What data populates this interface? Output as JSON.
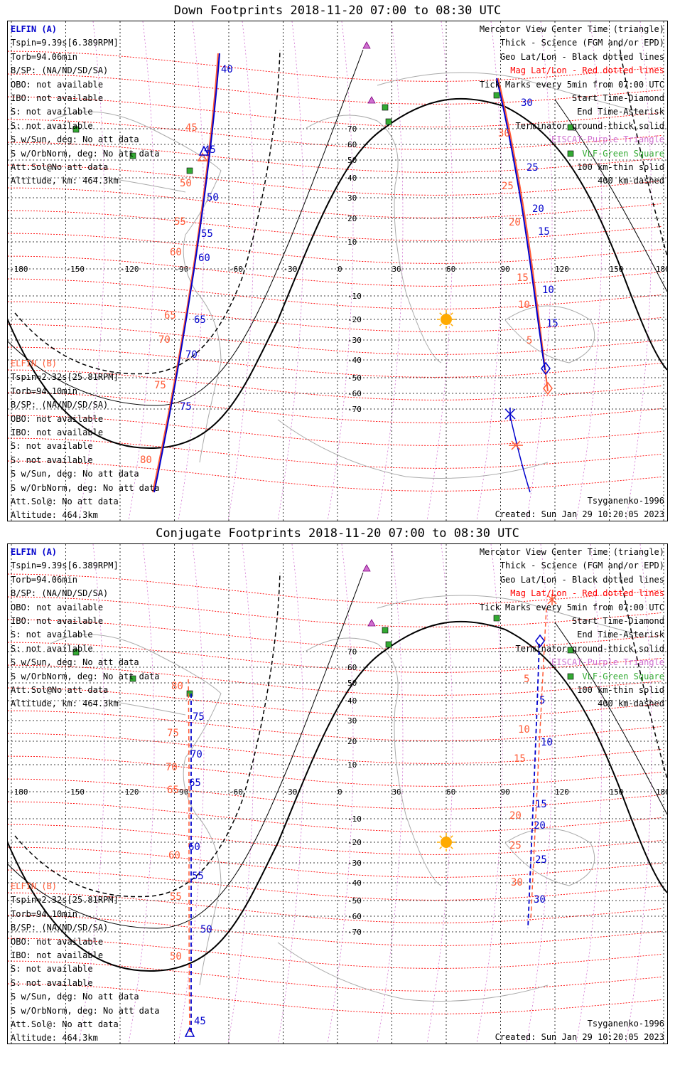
{
  "panels": [
    {
      "title": "Down Footprints 2018-11-20 07:00 to 08:30 UTC",
      "elfin_a": {
        "name": "ELFIN (A)",
        "lines": [
          "Tspin=9.39s[6.389RPM]",
          "Torb=94.06min",
          "B/SP: (NA/ND/SD/SA)",
          "OBO: not available",
          "IBO: not available",
          "S: not available",
          "S: not available",
          "S w/Sun, deg: No att data",
          "S w/OrbNorm, deg: No att data",
          "Att.Sol@No att data",
          "Altitude, km: 464.3km"
        ]
      },
      "elfin_b": {
        "name": "ELFIN (B)",
        "lines": [
          "Tspin=2.32s[25.81RPM]",
          "Torb=94.10min",
          "B/SP: (NA/ND/SD/SA)",
          "OBO: not available",
          "IBO: not available",
          "S: not available",
          "S: not available",
          "S w/Sun, deg: No att data",
          "S w/OrbNorm, deg: No att data",
          "Att.Sol@: No att data",
          "Altitude: 464.3km"
        ]
      },
      "legend": [
        "Mercator View Center Time (triangle)",
        "Thick - Science (FGM and/or EPD)",
        "Geo Lat/Lon - Black dotted lines",
        "Mag Lat/Lon - Red dotted lines",
        "Tick Marks every 5min from 07:00 UTC",
        "Start Time-Diamond",
        "End Time-Asterisk",
        "Terminator ground-thick solid",
        "EISCAT-Purple Triangle",
        "VLF-Green Square",
        "100 km-thin solid",
        "400 km-dashed"
      ],
      "model": "Tsyganenko-1996",
      "created": "Created: Sun Jan 29 10:20:05 2023",
      "lon_labels": [
        "-180",
        "-150",
        "-120",
        "-90",
        "-60",
        "-30",
        "0",
        "30",
        "60",
        "90",
        "120",
        "150",
        "180"
      ],
      "lat_labels": [
        "70",
        "60",
        "50",
        "40",
        "30",
        "20",
        "10",
        "-10",
        "-20",
        "-30",
        "-40",
        "-50",
        "-60",
        "-70"
      ],
      "tick_labels_a": [
        "40",
        "45",
        "50",
        "55",
        "60",
        "65",
        "70",
        "75",
        "30",
        "25",
        "20",
        "15",
        "10",
        "15"
      ],
      "tick_labels_b": [
        "45",
        "50",
        "55",
        "60",
        "65",
        "70",
        "75",
        "80",
        "30",
        "25",
        "20",
        "15",
        "10",
        "5"
      ]
    },
    {
      "title": "Conjugate Footprints 2018-11-20 07:00 to 08:30 UTC",
      "elfin_a": {
        "name": "ELFIN (A)",
        "lines": [
          "Tspin=9.39s[6.389RPM]",
          "Torb=94.06min",
          "B/SP: (NA/ND/SD/SA)",
          "OBO: not available",
          "IBO: not available",
          "S: not available",
          "S: not available",
          "S w/Sun, deg: No att data",
          "S w/OrbNorm, deg: No att data",
          "Att.Sol@No att data",
          "Altitude, km: 464.3km"
        ]
      },
      "elfin_b": {
        "name": "ELFIN (B)",
        "lines": [
          "Tspin=2.32s[25.81RPM]",
          "Torb=94.10min",
          "B/SP: (NA/ND/SD/SA)",
          "OBO: not available",
          "IBO: not available",
          "S: not available",
          "S: not available",
          "S w/Sun, deg: No att data",
          "S w/OrbNorm, deg: No att data",
          "Att.Sol@: No att data",
          "Altitude: 464.3km"
        ]
      },
      "legend": [
        "Mercator View Center Time (triangle)",
        "Thick - Science (FGM and/or EPD)",
        "Geo Lat/Lon - Black dotted lines",
        "Mag Lat/Lon - Red dotted lines",
        "Tick Marks every 5min from 07:00 UTC",
        "Start Time-Diamond",
        "End Time-Asterisk",
        "Terminator ground-thick solid",
        "EISCAT-Purple Triangle",
        "VLF-Green Square",
        "100 km-thin solid",
        "400 km-dashed"
      ],
      "model": "Tsyganenko-1996",
      "created": "Created: Sun Jan 29 10:20:05 2023",
      "lon_labels": [
        "-180",
        "-150",
        "-120",
        "-90",
        "-60",
        "-30",
        "0",
        "30",
        "60",
        "90",
        "120",
        "150",
        "180"
      ],
      "lat_labels": [
        "70",
        "60",
        "50",
        "40",
        "30",
        "20",
        "10",
        "-10",
        "-20",
        "-30",
        "-40",
        "-50",
        "-60",
        "-70"
      ],
      "tick_labels_a": [
        "75",
        "70",
        "65",
        "60",
        "55",
        "50",
        "45",
        "5",
        "10",
        "15",
        "20",
        "25",
        "30"
      ],
      "tick_labels_b": [
        "80",
        "75",
        "70",
        "65",
        "60",
        "55",
        "50",
        "5",
        "10",
        "15",
        "20",
        "25",
        "30"
      ]
    }
  ],
  "colors": {
    "elfin_a": "#0000cc",
    "elfin_b": "#ff5a36",
    "mag_grid": "#ff0000",
    "eiscat": "#d070d0",
    "vlf": "#33aa33",
    "sun": "#ffaa00"
  }
}
